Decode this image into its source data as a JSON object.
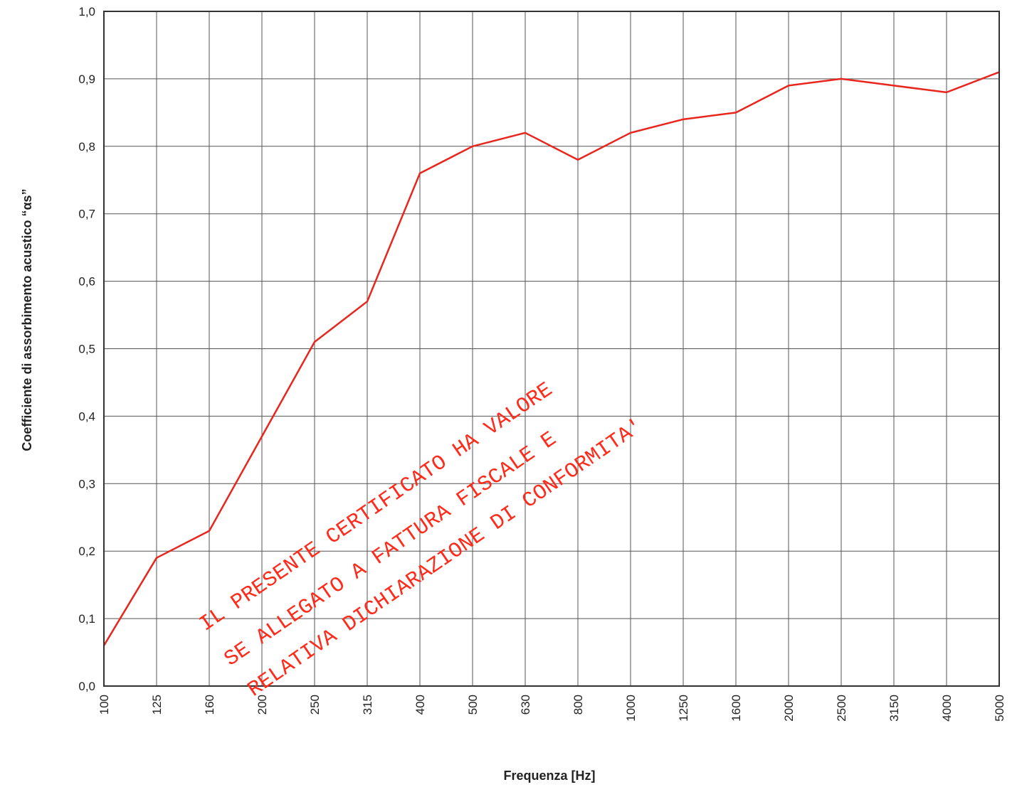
{
  "chart_data": {
    "type": "line",
    "title": "",
    "xlabel": "Frequenza [Hz]",
    "ylabel": "Coefficiente di assorbimento acustico “αs”",
    "categories": [
      "100",
      "125",
      "160",
      "200",
      "250",
      "315",
      "400",
      "500",
      "630",
      "800",
      "1000",
      "1250",
      "1600",
      "2000",
      "2500",
      "3150",
      "4000",
      "5000"
    ],
    "yticks": [
      "0,0",
      "0,1",
      "0,2",
      "0,3",
      "0,4",
      "0,5",
      "0,6",
      "0,7",
      "0,8",
      "0,9",
      "1,0"
    ],
    "ylim": [
      0,
      1
    ],
    "grid": true,
    "legend": "none",
    "series": [
      {
        "values": [
          0.06,
          0.19,
          0.23,
          0.37,
          0.51,
          0.57,
          0.76,
          0.8,
          0.82,
          0.78,
          0.82,
          0.84,
          0.85,
          0.89,
          0.9,
          0.89,
          0.88,
          0.91
        ],
        "color": "#e8261e"
      }
    ]
  },
  "watermark": {
    "lines": [
      "IL PRESENTE CERTIFICATO HA VALORE",
      "SE ALLEGATO A FATTURA FISCALE E",
      "RELATIVA DICHIARAZIONE DI CONFORMITA'"
    ],
    "color": "#ff2a1a"
  }
}
